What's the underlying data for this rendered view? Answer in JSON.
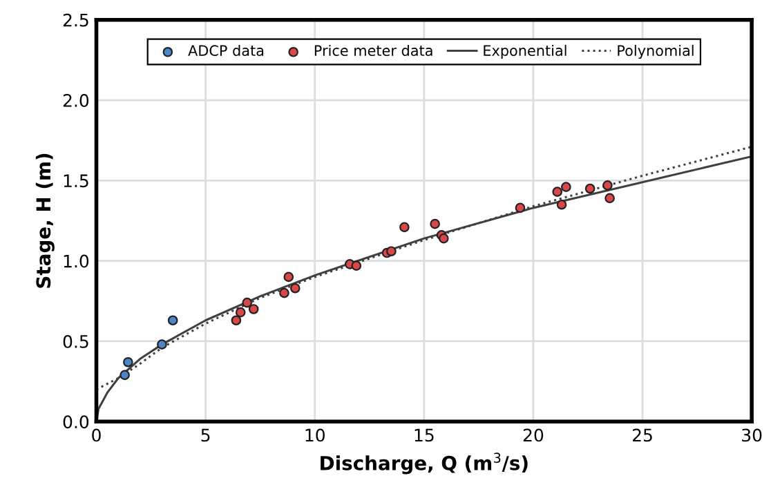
{
  "chart_data": {
    "type": "scatter",
    "xlabel": "Discharge, Q (m$^{3}$/s)",
    "ylabel": "Stage, H (m)",
    "xlim": [
      0,
      30
    ],
    "xticks": [
      0,
      5,
      10,
      15,
      20,
      25,
      30
    ],
    "ylim": [
      0,
      2.5
    ],
    "yticks": [
      {
        "value": 0,
        "label": "0.0"
      },
      {
        "value": 0.5,
        "label": "0.5"
      },
      {
        "value": 1,
        "label": "1.0"
      },
      {
        "value": 1.5,
        "label": "1.5"
      },
      {
        "value": 2,
        "label": "2.0"
      },
      {
        "value": 2.5,
        "label": "2.5"
      }
    ],
    "grid": true,
    "legend": "top",
    "series": [
      {
        "name": "ADCP data",
        "marker": "circle",
        "color": "#4a86c8",
        "x": [
          1.3,
          1.45,
          3.0,
          3.5
        ],
        "values": [
          0.29,
          0.37,
          0.48,
          0.63
        ]
      },
      {
        "name": "Price meter data",
        "marker": "circle",
        "color": "#d94848",
        "x": [
          6.4,
          6.6,
          6.9,
          7.2,
          8.6,
          8.8,
          9.1,
          11.6,
          11.9,
          13.3,
          13.5,
          14.1,
          15.5,
          15.8,
          15.9,
          19.4,
          21.1,
          21.3,
          21.5,
          22.6,
          23.4,
          23.5
        ],
        "values": [
          0.63,
          0.68,
          0.74,
          0.7,
          0.8,
          0.9,
          0.83,
          0.98,
          0.97,
          1.05,
          1.06,
          1.21,
          1.23,
          1.16,
          1.14,
          1.33,
          1.43,
          1.35,
          1.46,
          1.45,
          1.47,
          1.39
        ]
      },
      {
        "name": "Exponential",
        "type": "line",
        "color": "#404040",
        "line_style": "solid",
        "x": [
          0,
          0.1,
          0.5,
          1,
          2,
          3,
          5,
          7.5,
          10,
          15,
          20,
          25,
          30
        ],
        "values": [
          0,
          0.08,
          0.18,
          0.27,
          0.39,
          0.48,
          0.63,
          0.78,
          0.91,
          1.14,
          1.33,
          1.49,
          1.65
        ]
      },
      {
        "name": "Polynomial",
        "type": "line",
        "color": "#404040",
        "line_style": "dotted",
        "x": [
          0,
          1,
          2,
          3,
          5,
          7.5,
          10,
          15,
          20,
          25,
          30
        ],
        "values": [
          0.2,
          0.27,
          0.36,
          0.46,
          0.61,
          0.77,
          0.9,
          1.13,
          1.34,
          1.53,
          1.71
        ]
      }
    ]
  }
}
